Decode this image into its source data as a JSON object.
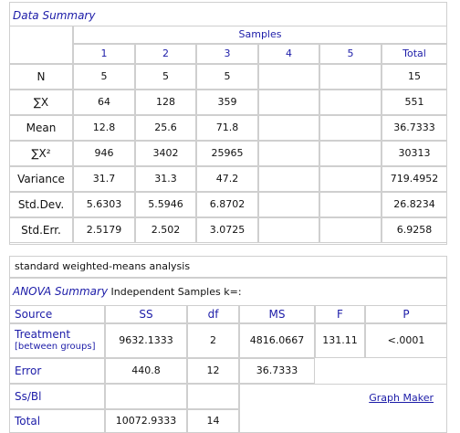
{
  "data_summary": {
    "title": "Data Summary",
    "group_header": "Samples",
    "columns": [
      1,
      2,
      3,
      4,
      5,
      "Total"
    ],
    "rows": [
      {
        "label": "N",
        "values": [
          5,
          5,
          5,
          null,
          null,
          15
        ]
      },
      {
        "label": "∑X",
        "values": [
          64,
          128,
          359,
          null,
          null,
          551
        ]
      },
      {
        "label": "Mean",
        "values": [
          12.8,
          25.6,
          71.8,
          null,
          null,
          36.7333
        ]
      },
      {
        "label": "∑X²",
        "values": [
          946,
          3402,
          25965,
          null,
          null,
          30313
        ]
      },
      {
        "label": "Variance",
        "values": [
          31.7,
          31.3,
          47.2,
          null,
          null,
          719.4952
        ]
      },
      {
        "label": "Std.Dev.",
        "values": [
          5.6303,
          5.5946,
          6.8702,
          null,
          null,
          26.8234
        ]
      },
      {
        "label": "Std.Err.",
        "values": [
          2.5179,
          2.502,
          3.0725,
          null,
          null,
          6.9258
        ]
      }
    ]
  },
  "analysis_note": "standard weighted-means analysis",
  "anova": {
    "title": "ANOVA Summary",
    "subtitle": "Independent Samples k=:",
    "columns": [
      "Source",
      "SS",
      "df",
      "MS",
      "F",
      "P"
    ],
    "rows": [
      {
        "source": "Treatment",
        "source_note": "[between groups]",
        "cells": [
          9632.1333,
          2,
          4816.0667,
          131.11,
          "<.0001"
        ]
      },
      {
        "source": "Error",
        "cells": [
          440.8,
          12,
          36.7333
        ]
      },
      {
        "source": "Ss/Bl"
      },
      {
        "source": "Total",
        "cells": [
          10072.9333,
          14
        ]
      }
    ],
    "link": "Graph Maker"
  }
}
